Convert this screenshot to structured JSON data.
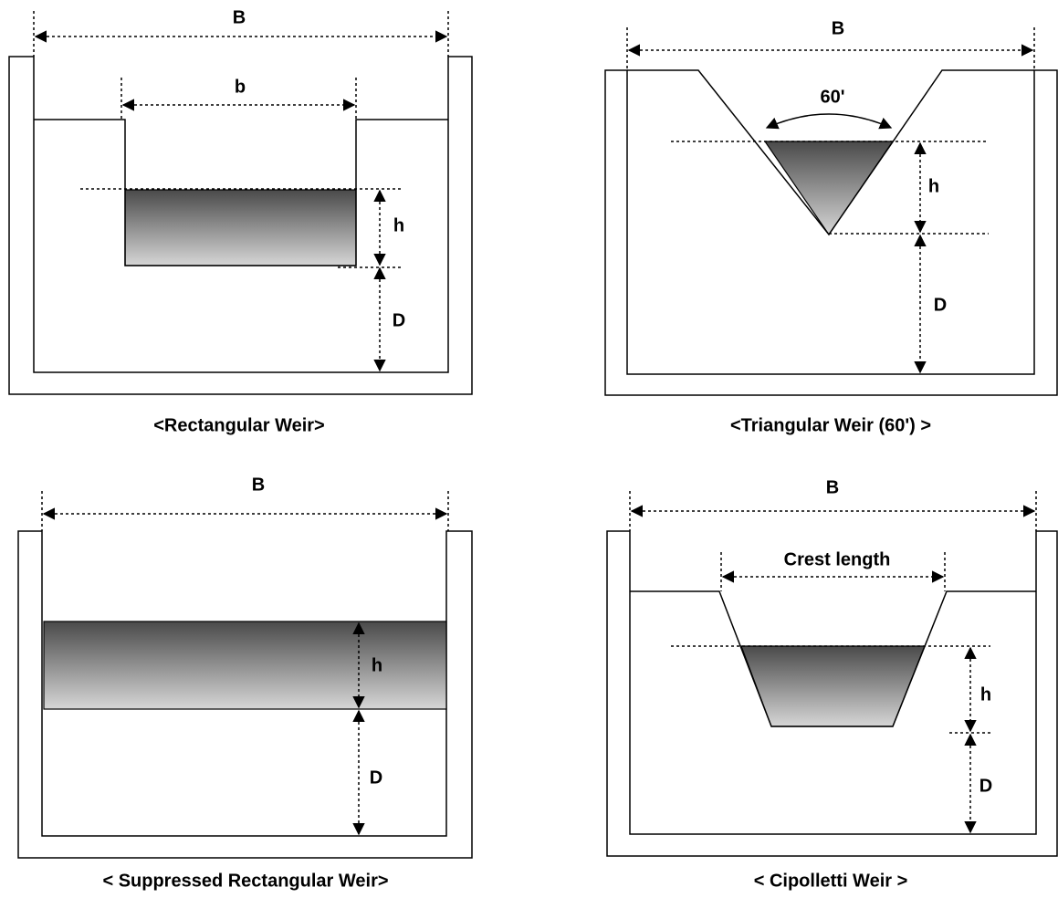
{
  "panels": [
    {
      "caption": "<Rectangular Weir>",
      "labels": [
        "B",
        "b",
        "h",
        "D"
      ]
    },
    {
      "caption": "<Triangular Weir (60') >",
      "labels": [
        "B",
        "60'",
        "h",
        "D"
      ]
    },
    {
      "caption": "< Suppressed Rectangular Weir>",
      "labels": [
        "B",
        "h",
        "D"
      ]
    },
    {
      "caption": "< Cipolletti Weir >",
      "labels": [
        "B",
        "Crest length",
        "h",
        "D"
      ]
    }
  ]
}
